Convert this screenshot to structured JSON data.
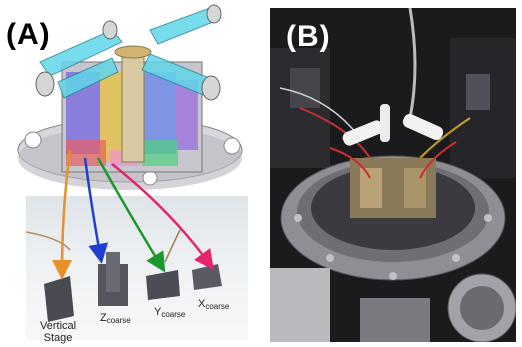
{
  "panel_a": {
    "label": "(A)",
    "parts": [
      {
        "main": "Vertical",
        "line2": "Stage"
      },
      {
        "main": "Z",
        "sub": "coarse"
      },
      {
        "main": "Y",
        "sub": "coarse"
      },
      {
        "main": "X",
        "sub": "coarse"
      }
    ],
    "arrow_colors": {
      "vertical": "#e8902a",
      "z": "#1f3fd0",
      "y": "#1a9a2a",
      "x": "#e6246e"
    }
  },
  "panel_b": {
    "label": "(B)"
  }
}
